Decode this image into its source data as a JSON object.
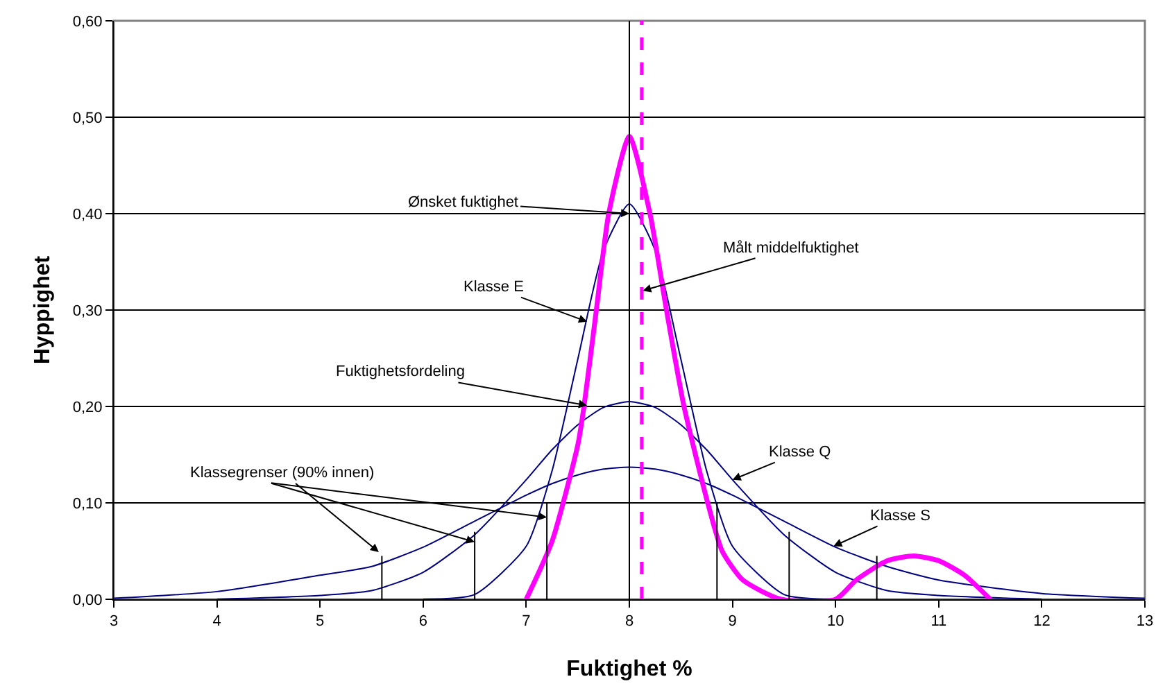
{
  "chart_data": {
    "type": "line",
    "xlabel": "Fuktighet %",
    "ylabel": "Hyppighet",
    "xlim": [
      3,
      13
    ],
    "ylim": [
      0,
      0.6
    ],
    "xticks": [
      3,
      4,
      5,
      6,
      7,
      8,
      9,
      10,
      11,
      12,
      13
    ],
    "yticks": [
      {
        "value": 0,
        "label": "0,00"
      },
      {
        "value": 0.1,
        "label": "0,10"
      },
      {
        "value": 0.2,
        "label": "0,20"
      },
      {
        "value": 0.3,
        "label": "0,30"
      },
      {
        "value": 0.4,
        "label": "0,40"
      },
      {
        "value": 0.5,
        "label": "0,50"
      },
      {
        "value": 0.6,
        "label": "0,60"
      }
    ],
    "grid": "y",
    "marker": "none",
    "series": [
      {
        "color": "#000080",
        "x": [
          6,
          6.5,
          7,
          7.25,
          7.5,
          7.75,
          8,
          8.25,
          8.5,
          8.75,
          9,
          9.5,
          10
        ],
        "values": [
          0,
          0.005,
          0.055,
          0.133,
          0.249,
          0.362,
          0.41,
          0.362,
          0.249,
          0.133,
          0.055,
          0.005,
          0
        ]
      },
      {
        "color": "#000080",
        "x": [
          4,
          5,
          5.5,
          6,
          6.5,
          7,
          7.25,
          7.5,
          7.75,
          8,
          8.25,
          8.5,
          8.75,
          9,
          9.5,
          10,
          10.5,
          11,
          12
        ],
        "values": [
          0,
          0.004,
          0.009,
          0.028,
          0.067,
          0.124,
          0.155,
          0.181,
          0.199,
          0.205,
          0.199,
          0.181,
          0.155,
          0.124,
          0.067,
          0.028,
          0.009,
          0.004,
          0
        ]
      },
      {
        "color": "#000080",
        "x": [
          3,
          4,
          5,
          5.5,
          6,
          6.5,
          7,
          7.25,
          7.5,
          7.75,
          8,
          8.25,
          8.5,
          8.75,
          9,
          9.5,
          10,
          10.5,
          11,
          12,
          13
        ],
        "values": [
          0.001,
          0.008,
          0.025,
          0.034,
          0.054,
          0.081,
          0.108,
          0.12,
          0.129,
          0.135,
          0.137,
          0.135,
          0.129,
          0.12,
          0.108,
          0.081,
          0.054,
          0.034,
          0.02,
          0.006,
          0.001
        ]
      },
      {
        "color": "#ff00ff",
        "x": [
          7,
          7.25,
          7.5,
          7.56,
          7.68,
          7.8,
          8,
          8.2,
          8.36,
          8.53,
          8.76,
          8.9,
          9.1,
          9.47,
          10,
          10.2,
          10.5,
          10.76,
          11,
          11.25,
          11.5
        ],
        "values": [
          0,
          0.06,
          0.16,
          0.2,
          0.3,
          0.4,
          0.48,
          0.4,
          0.3,
          0.2,
          0.1,
          0.05,
          0.02,
          0,
          0,
          0.02,
          0.04,
          0.045,
          0.04,
          0.025,
          0
        ]
      },
      {
        "color": "#000000",
        "x": [
          5.6,
          5.6,
          null,
          6.5,
          6.5,
          null,
          7.2,
          7.2,
          null,
          8.85,
          8.85,
          null,
          9.55,
          9.55,
          null,
          10.4,
          10.4
        ],
        "values": [
          0,
          0.045,
          null,
          0,
          0.07,
          null,
          0,
          0.1,
          null,
          0,
          0.1,
          null,
          0,
          0.07,
          null,
          0,
          0.045
        ]
      }
    ],
    "ref_lines": [
      {
        "axis": "x",
        "value": 8,
        "color": "#000000",
        "line_style": "solid"
      },
      {
        "axis": "x",
        "value": 8.12,
        "color": "#ff00ff",
        "line_style": "dashed"
      }
    ],
    "annotations": [
      {
        "text": "Ønsket fuktighet",
        "x": 8,
        "y": 0.4
      },
      {
        "text": "Klasse E",
        "x": 7.59,
        "y": 0.288
      },
      {
        "text": "Fuktighetsfordeling",
        "x": 7.59,
        "y": 0.201
      },
      {
        "text": "Klassegrenser (90% innen)",
        "x": 5.57,
        "y": 0.049
      },
      {
        "text": "Målt middelfuktighet",
        "x": 8.13,
        "y": 0.32
      },
      {
        "text": "Klasse Q",
        "x": 9,
        "y": 0.124
      },
      {
        "text": "Klasse S",
        "x": 9.98,
        "y": 0.055
      }
    ]
  }
}
